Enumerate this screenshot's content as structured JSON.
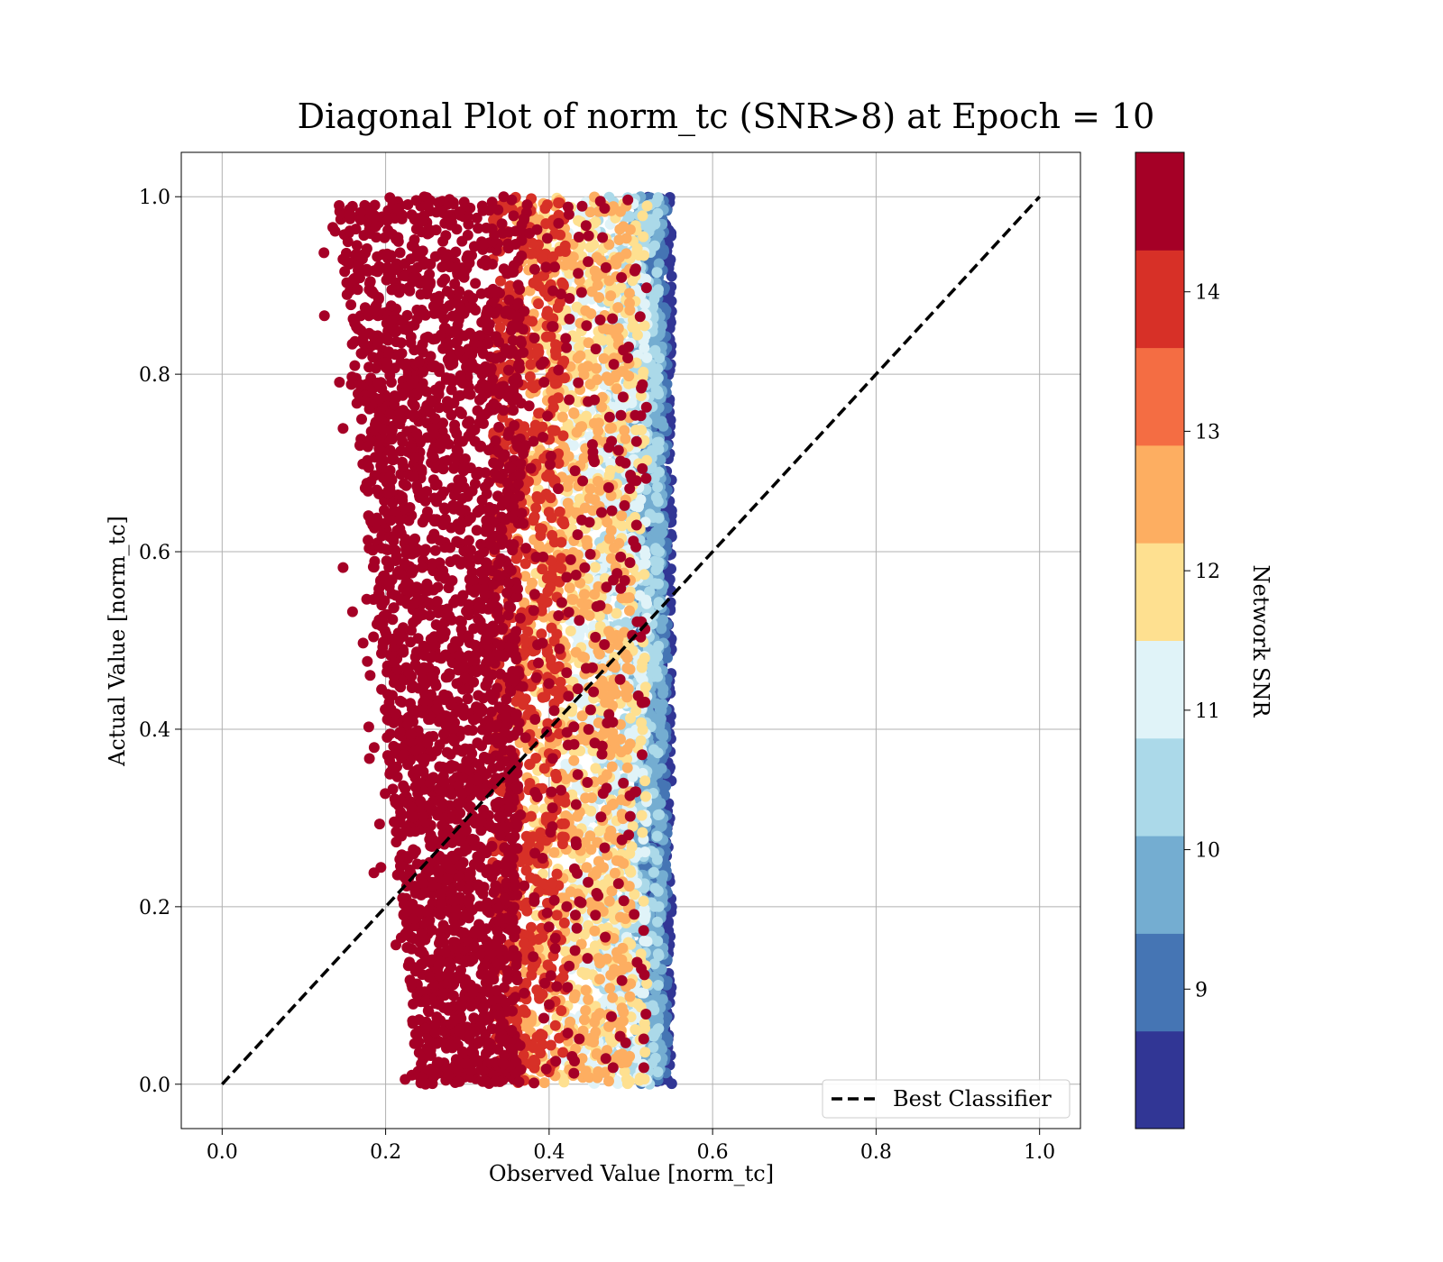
{
  "chart_data": {
    "type": "scatter",
    "title": "Diagonal Plot of norm_tc (SNR>8) at Epoch = 10",
    "xlabel": "Observed Value [norm_tc]",
    "ylabel": "Actual Value [norm_tc]",
    "xlim": [
      -0.05,
      1.05
    ],
    "ylim": [
      -0.05,
      1.05
    ],
    "xticks": [
      "0.0",
      "0.2",
      "0.4",
      "0.6",
      "0.8",
      "1.0"
    ],
    "yticks": [
      "0.0",
      "0.2",
      "0.4",
      "0.6",
      "0.8",
      "1.0"
    ],
    "grid": true,
    "reference_line": {
      "name": "Best Classifier",
      "x": [
        0.0,
        1.0
      ],
      "y": [
        0.0,
        1.0
      ],
      "style": "dashed",
      "color": "#000000"
    },
    "legend": {
      "placement": "bottom-right",
      "entries": [
        "Best Classifier"
      ]
    },
    "colorbar": {
      "label": "Network SNR",
      "range": [
        8,
        15
      ],
      "ticks": [
        "9",
        "10",
        "11",
        "12",
        "13",
        "14"
      ],
      "bins": [
        {
          "from": 8.0,
          "to": 8.7,
          "color": "#313695"
        },
        {
          "from": 8.7,
          "to": 9.4,
          "color": "#4575b4"
        },
        {
          "from": 9.4,
          "to": 10.1,
          "color": "#74add1"
        },
        {
          "from": 10.1,
          "to": 10.8,
          "color": "#abd9e9"
        },
        {
          "from": 10.8,
          "to": 11.5,
          "color": "#e0f3f8"
        },
        {
          "from": 11.5,
          "to": 12.2,
          "color": "#fee090"
        },
        {
          "from": 12.2,
          "to": 12.9,
          "color": "#fdae61"
        },
        {
          "from": 12.9,
          "to": 13.6,
          "color": "#f46d43"
        },
        {
          "from": 13.6,
          "to": 14.3,
          "color": "#d73027"
        },
        {
          "from": 14.3,
          "to": 15.0,
          "color": "#a50026"
        }
      ]
    },
    "scatter_bands": [
      {
        "snr": 14.8,
        "y_min": 0.0,
        "y_max": 1.0,
        "x_left_at_bottom": 0.24,
        "x_left_at_top": 0.14,
        "x_right_at_bottom": 0.36,
        "x_right_at_top": 0.37,
        "note_density": "dense"
      },
      {
        "snr": 13.9,
        "x_range": [
          0.33,
          0.42
        ],
        "y_range": [
          0.0,
          1.0
        ]
      },
      {
        "snr": 12.6,
        "x_range": [
          0.36,
          0.5
        ],
        "y_range": [
          0.0,
          1.0
        ]
      },
      {
        "snr": 11.8,
        "x_range": [
          0.38,
          0.52
        ],
        "y_range": [
          0.0,
          1.0
        ]
      },
      {
        "snr": 11.0,
        "x_range": [
          0.42,
          0.52
        ],
        "y_range": [
          0.0,
          1.0
        ]
      },
      {
        "snr": 10.4,
        "x_range": [
          0.46,
          0.535
        ],
        "y_range": [
          0.0,
          1.0
        ]
      },
      {
        "snr": 9.7,
        "x_range": [
          0.5,
          0.54
        ],
        "y_range": [
          0.0,
          1.0
        ]
      },
      {
        "snr": 9.0,
        "x_range": [
          0.51,
          0.545
        ],
        "y_range": [
          0.0,
          1.0
        ]
      },
      {
        "snr": 8.4,
        "x_range": [
          0.52,
          0.55
        ],
        "y_range": [
          0.0,
          1.0
        ]
      }
    ]
  }
}
